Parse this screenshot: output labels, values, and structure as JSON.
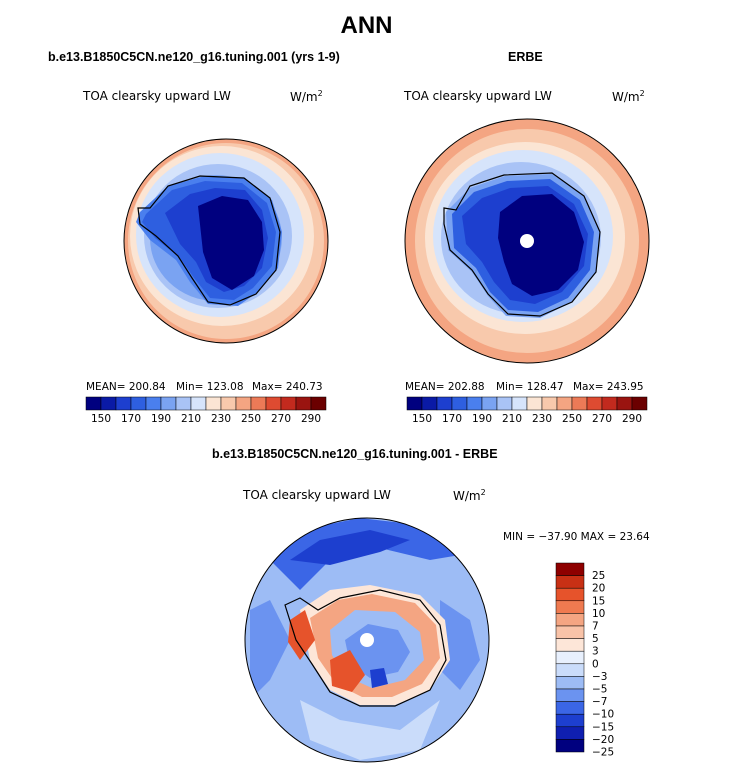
{
  "main_title": "ANN",
  "colors": {
    "abs_scale": [
      "#00007f",
      "#0a1aa6",
      "#1d3fcf",
      "#2e5fe0",
      "#4a7fee",
      "#7aa3f2",
      "#a9c3f6",
      "#d6e4fb",
      "#fbe5d4",
      "#f8c9ac",
      "#f4a582",
      "#ec7a57",
      "#de4b31",
      "#c22a1e",
      "#9a1410",
      "#6b0000"
    ],
    "diff_scale": [
      "#00007f",
      "#0f1fb0",
      "#1d3fcf",
      "#3b66e6",
      "#6b93f0",
      "#9dbcf5",
      "#cadcfa",
      "#e8f0fd",
      "#fde6d8",
      "#f9c3a8",
      "#f4a582",
      "#ef7a50",
      "#e6532b",
      "#c83015",
      "#8e0000"
    ]
  },
  "panels": {
    "left": {
      "title": "b.e13.B1850C5CN.ne120_g16.tuning.001 (yrs 1-9)",
      "field": "TOA clearsky upward LW",
      "units": "W/m",
      "units_sup": "2",
      "mean": "MEAN= 200.84",
      "min": "Min= 123.08",
      "max": "Max= 240.73"
    },
    "right": {
      "title": "ERBE",
      "field": "TOA clearsky upward LW",
      "units": "W/m",
      "units_sup": "2",
      "mean": "MEAN= 202.88",
      "min": "Min= 128.47",
      "max": "Max= 243.95"
    },
    "diff": {
      "title": "b.e13.B1850C5CN.ne120_g16.tuning.001 - ERBE",
      "field": "TOA clearsky upward LW",
      "units": "W/m",
      "units_sup": "2",
      "minmax": "MIN = −37.90 MAX =  23.64"
    }
  },
  "abs_ticks": [
    "150",
    "170",
    "190",
    "210",
    "230",
    "250",
    "270",
    "290"
  ],
  "diff_ticks": [
    "25",
    "20",
    "15",
    "10",
    "7",
    "5",
    "3",
    "0",
    "−3",
    "−5",
    "−7",
    "−10",
    "−15",
    "−20",
    "−25"
  ]
}
